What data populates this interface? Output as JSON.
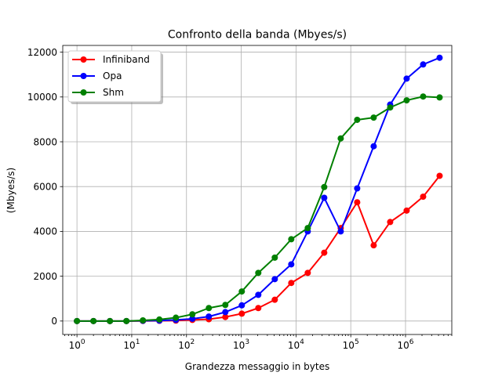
{
  "chart_data": {
    "type": "line",
    "title": "Confronto della banda (Mbyes/s)",
    "xlabel": "Grandezza messaggio in bytes",
    "ylabel": "(Mbyes/s)",
    "xscale": "log",
    "xlim": [
      0.55,
      7000000
    ],
    "ylim": [
      -600,
      12300
    ],
    "xticks": [
      {
        "value": 1,
        "base": "10",
        "exp": "0"
      },
      {
        "value": 10,
        "base": "10",
        "exp": "1"
      },
      {
        "value": 100,
        "base": "10",
        "exp": "2"
      },
      {
        "value": 1000,
        "base": "10",
        "exp": "3"
      },
      {
        "value": 10000,
        "base": "10",
        "exp": "4"
      },
      {
        "value": 100000,
        "base": "10",
        "exp": "5"
      },
      {
        "value": 1000000,
        "base": "10",
        "exp": "6"
      }
    ],
    "yticks": [
      0,
      2000,
      4000,
      6000,
      8000,
      10000,
      12000
    ],
    "grid": true,
    "legend_position": "top-left",
    "x": [
      1,
      2,
      4,
      8,
      16,
      32,
      64,
      128,
      256,
      512,
      1024,
      2048,
      4096,
      8192,
      16384,
      32768,
      65536,
      131072,
      262144,
      524288,
      1048576,
      2097152,
      4194304
    ],
    "series": [
      {
        "name": "Infiniband",
        "color": "#ff0000",
        "values": [
          0,
          0,
          0,
          0,
          5,
          10,
          20,
          50,
          80,
          180,
          330,
          580,
          950,
          1700,
          2150,
          3050,
          4150,
          5300,
          3380,
          4420,
          4930,
          5550,
          6480
        ]
      },
      {
        "name": "Opa",
        "color": "#0000ff",
        "values": [
          0,
          0,
          0,
          0,
          10,
          20,
          50,
          100,
          200,
          400,
          700,
          1170,
          1870,
          2530,
          4000,
          5500,
          4000,
          5920,
          7800,
          9660,
          10820,
          11450,
          11750
        ]
      },
      {
        "name": "Shm",
        "color": "#008000",
        "values": [
          0,
          0,
          0,
          0,
          30,
          70,
          150,
          300,
          580,
          720,
          1320,
          2150,
          2830,
          3650,
          4150,
          5980,
          8150,
          8980,
          9080,
          9530,
          9850,
          10020,
          9980
        ]
      }
    ]
  }
}
